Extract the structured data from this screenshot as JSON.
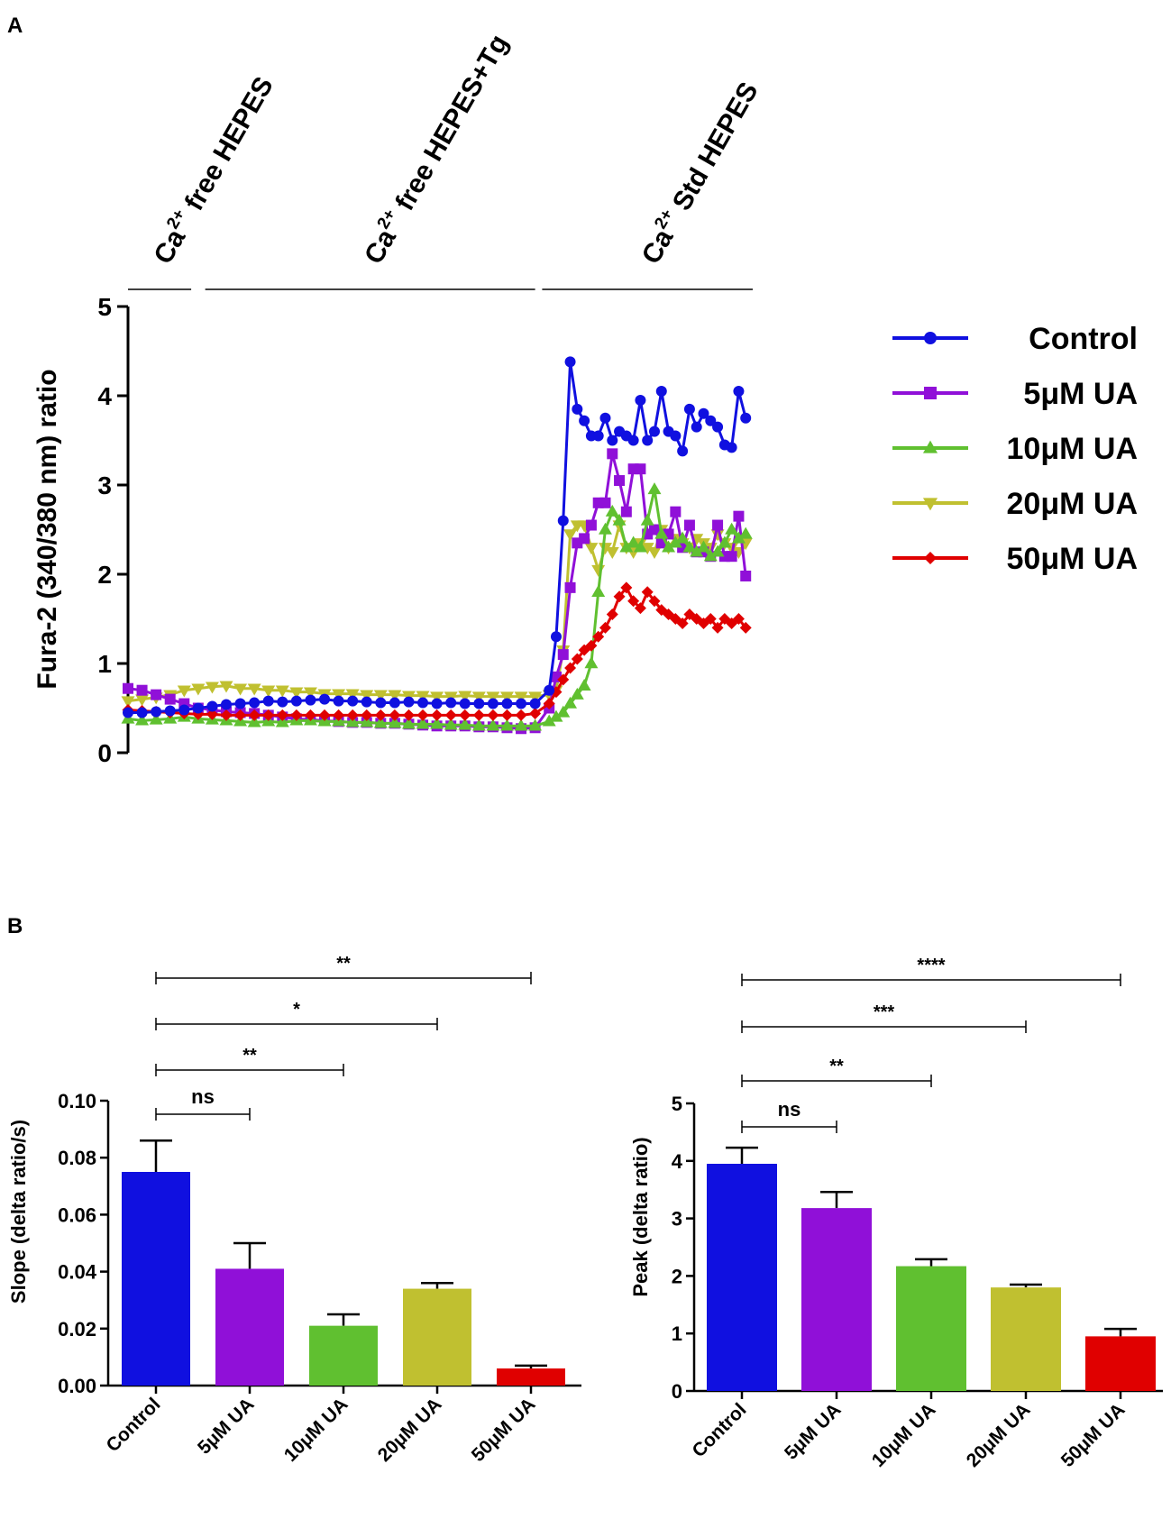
{
  "panel_a": {
    "letter": "A",
    "conditions": [
      {
        "pre": "Ca",
        "sup": "2+",
        "post": " free HEPES",
        "t_start": 0,
        "t_end": 9
      },
      {
        "pre": "Ca",
        "sup": "2+",
        "post": " free HEPES+Tg",
        "t_start": 11,
        "t_end": 58
      },
      {
        "pre": "Ca",
        "sup": "2+",
        "post": " Std HEPES",
        "t_start": 59,
        "t_end": 89
      }
    ]
  },
  "panel_b": {
    "letter": "B"
  },
  "colors": {
    "control": "#1010e0",
    "ua5": "#9010d8",
    "ua10": "#60c030",
    "ua20": "#c0c030",
    "ua50": "#e00000"
  },
  "chart_data": [
    {
      "type": "line",
      "title": "",
      "xlabel": "",
      "ylabel": "Fura-2 (340/380 nm) ratio",
      "xlim": [
        0,
        89
      ],
      "ylim": [
        0,
        5
      ],
      "yticks": [
        0,
        1,
        2,
        3,
        4,
        5
      ],
      "legend_position": "right",
      "series": [
        {
          "name": "Control",
          "marker": "circle",
          "color": "#1010e0",
          "x": [
            0,
            2,
            4,
            6,
            8,
            10,
            12,
            14,
            16,
            18,
            20,
            22,
            24,
            26,
            28,
            30,
            32,
            34,
            36,
            38,
            40,
            42,
            44,
            46,
            48,
            50,
            52,
            54,
            56,
            58,
            60,
            61,
            62,
            63,
            64,
            65,
            66,
            67,
            68,
            69,
            70,
            71,
            72,
            73,
            74,
            75,
            76,
            77,
            78,
            79,
            80,
            81,
            82,
            83,
            84,
            85,
            86,
            87,
            88
          ],
          "y": [
            0.45,
            0.45,
            0.46,
            0.47,
            0.48,
            0.5,
            0.52,
            0.54,
            0.55,
            0.56,
            0.58,
            0.57,
            0.58,
            0.59,
            0.6,
            0.58,
            0.58,
            0.57,
            0.56,
            0.56,
            0.57,
            0.56,
            0.55,
            0.56,
            0.55,
            0.55,
            0.55,
            0.55,
            0.55,
            0.55,
            0.7,
            1.3,
            2.6,
            4.38,
            3.85,
            3.72,
            3.55,
            3.55,
            3.75,
            3.5,
            3.6,
            3.55,
            3.5,
            3.95,
            3.5,
            3.6,
            4.05,
            3.6,
            3.55,
            3.38,
            3.85,
            3.65,
            3.8,
            3.72,
            3.65,
            3.45,
            3.42,
            4.05,
            3.75
          ]
        },
        {
          "name": "5μM UA",
          "marker": "square",
          "color": "#9010d8",
          "x": [
            0,
            2,
            4,
            6,
            8,
            10,
            12,
            14,
            16,
            18,
            20,
            22,
            24,
            26,
            28,
            30,
            32,
            34,
            36,
            38,
            40,
            42,
            44,
            46,
            48,
            50,
            52,
            54,
            56,
            58,
            60,
            61,
            62,
            63,
            64,
            65,
            66,
            67,
            68,
            69,
            70,
            71,
            72,
            73,
            74,
            75,
            76,
            77,
            78,
            79,
            80,
            81,
            82,
            83,
            84,
            85,
            86,
            87,
            88
          ],
          "y": [
            0.72,
            0.7,
            0.65,
            0.6,
            0.55,
            0.5,
            0.48,
            0.46,
            0.45,
            0.44,
            0.42,
            0.4,
            0.38,
            0.37,
            0.36,
            0.35,
            0.34,
            0.34,
            0.33,
            0.33,
            0.32,
            0.31,
            0.3,
            0.3,
            0.3,
            0.29,
            0.29,
            0.28,
            0.27,
            0.28,
            0.5,
            0.85,
            1.1,
            1.85,
            2.35,
            2.4,
            2.55,
            2.8,
            2.8,
            3.35,
            3.05,
            2.7,
            3.18,
            3.18,
            2.45,
            2.5,
            2.35,
            2.45,
            2.7,
            2.3,
            2.55,
            2.25,
            2.25,
            2.2,
            2.55,
            2.2,
            2.2,
            2.65,
            1.98
          ]
        },
        {
          "name": "10μM UA",
          "marker": "triangle-up",
          "color": "#60c030",
          "x": [
            0,
            2,
            4,
            6,
            8,
            10,
            12,
            14,
            16,
            18,
            20,
            22,
            24,
            26,
            28,
            30,
            32,
            34,
            36,
            38,
            40,
            42,
            44,
            46,
            48,
            50,
            52,
            54,
            56,
            58,
            60,
            61,
            62,
            63,
            64,
            65,
            66,
            67,
            68,
            69,
            70,
            71,
            72,
            73,
            74,
            75,
            76,
            77,
            78,
            79,
            80,
            81,
            82,
            83,
            84,
            85,
            86,
            87,
            88
          ],
          "y": [
            0.38,
            0.36,
            0.37,
            0.38,
            0.4,
            0.38,
            0.37,
            0.36,
            0.35,
            0.34,
            0.35,
            0.34,
            0.36,
            0.36,
            0.35,
            0.35,
            0.34,
            0.34,
            0.33,
            0.33,
            0.32,
            0.32,
            0.32,
            0.31,
            0.31,
            0.3,
            0.3,
            0.3,
            0.3,
            0.3,
            0.35,
            0.4,
            0.45,
            0.55,
            0.65,
            0.75,
            1.0,
            1.8,
            2.5,
            2.7,
            2.6,
            2.3,
            2.35,
            2.3,
            2.6,
            2.95,
            2.45,
            2.3,
            2.35,
            2.4,
            2.3,
            2.25,
            2.3,
            2.2,
            2.25,
            2.35,
            2.5,
            2.4,
            2.45
          ]
        },
        {
          "name": "20μM UA",
          "marker": "triangle-down",
          "color": "#c0c030",
          "x": [
            0,
            2,
            4,
            6,
            8,
            10,
            12,
            14,
            16,
            18,
            20,
            22,
            24,
            26,
            28,
            30,
            32,
            34,
            36,
            38,
            40,
            42,
            44,
            46,
            48,
            50,
            52,
            54,
            56,
            58,
            60,
            61,
            62,
            63,
            64,
            65,
            66,
            67,
            68,
            69,
            70,
            71,
            72,
            73,
            74,
            75,
            76,
            77,
            78,
            79,
            80,
            81,
            82,
            83,
            84,
            85,
            86,
            87,
            88
          ],
          "y": [
            0.58,
            0.6,
            0.62,
            0.65,
            0.7,
            0.72,
            0.74,
            0.75,
            0.72,
            0.72,
            0.7,
            0.7,
            0.68,
            0.68,
            0.66,
            0.66,
            0.66,
            0.65,
            0.65,
            0.65,
            0.64,
            0.64,
            0.63,
            0.63,
            0.64,
            0.63,
            0.63,
            0.63,
            0.63,
            0.63,
            0.65,
            0.7,
            1.15,
            2.45,
            2.55,
            2.55,
            2.3,
            2.05,
            2.3,
            2.25,
            2.55,
            2.3,
            2.25,
            2.35,
            2.3,
            2.25,
            2.5,
            2.3,
            2.4,
            2.35,
            2.3,
            2.4,
            2.35,
            2.3,
            2.45,
            2.35,
            2.3,
            2.25,
            2.35
          ]
        },
        {
          "name": "50μM UA",
          "marker": "diamond",
          "color": "#e00000",
          "x": [
            0,
            2,
            4,
            6,
            8,
            10,
            12,
            14,
            16,
            18,
            20,
            22,
            24,
            26,
            28,
            30,
            32,
            34,
            36,
            38,
            40,
            42,
            44,
            46,
            48,
            50,
            52,
            54,
            56,
            58,
            60,
            61,
            62,
            63,
            64,
            65,
            66,
            67,
            68,
            69,
            70,
            71,
            72,
            73,
            74,
            75,
            76,
            77,
            78,
            79,
            80,
            81,
            82,
            83,
            84,
            85,
            86,
            87,
            88
          ],
          "y": [
            0.48,
            0.47,
            0.46,
            0.45,
            0.44,
            0.43,
            0.43,
            0.42,
            0.42,
            0.42,
            0.42,
            0.42,
            0.42,
            0.42,
            0.42,
            0.42,
            0.42,
            0.42,
            0.42,
            0.42,
            0.42,
            0.42,
            0.42,
            0.42,
            0.42,
            0.42,
            0.42,
            0.42,
            0.42,
            0.44,
            0.55,
            0.68,
            0.82,
            0.95,
            1.05,
            1.15,
            1.2,
            1.3,
            1.4,
            1.55,
            1.75,
            1.85,
            1.7,
            1.62,
            1.8,
            1.7,
            1.6,
            1.55,
            1.5,
            1.45,
            1.55,
            1.5,
            1.45,
            1.5,
            1.4,
            1.5,
            1.45,
            1.5,
            1.4
          ]
        }
      ]
    },
    {
      "type": "bar",
      "title": "",
      "xlabel": "",
      "ylabel": "Slope (delta ratio/s)",
      "ylim": [
        0,
        0.1
      ],
      "yticks": [
        "0.00",
        "0.02",
        "0.04",
        "0.06",
        "0.08",
        "0.10"
      ],
      "categories": [
        "Control",
        "5μM UA",
        "10μM UA",
        "20μM UA",
        "50μM UA"
      ],
      "values": [
        0.075,
        0.041,
        0.021,
        0.034,
        0.006
      ],
      "errors": [
        0.011,
        0.009,
        0.004,
        0.002,
        0.001
      ],
      "significance": [
        {
          "from": 0,
          "to": 1,
          "label": "ns"
        },
        {
          "from": 0,
          "to": 2,
          "label": "**"
        },
        {
          "from": 0,
          "to": 3,
          "label": "*"
        },
        {
          "from": 0,
          "to": 4,
          "label": "**"
        }
      ]
    },
    {
      "type": "bar",
      "title": "",
      "xlabel": "",
      "ylabel": "Peak (delta ratio)",
      "ylim": [
        0,
        5
      ],
      "yticks": [
        "0",
        "1",
        "2",
        "3",
        "4",
        "5"
      ],
      "categories": [
        "Control",
        "5μM UA",
        "10μM UA",
        "20μM UA",
        "50μM UA"
      ],
      "values": [
        3.95,
        3.18,
        2.17,
        1.8,
        0.95
      ],
      "errors": [
        0.28,
        0.28,
        0.12,
        0.05,
        0.13
      ],
      "significance": [
        {
          "from": 0,
          "to": 1,
          "label": "ns"
        },
        {
          "from": 0,
          "to": 2,
          "label": "**"
        },
        {
          "from": 0,
          "to": 3,
          "label": "***"
        },
        {
          "from": 0,
          "to": 4,
          "label": "****"
        }
      ]
    }
  ]
}
